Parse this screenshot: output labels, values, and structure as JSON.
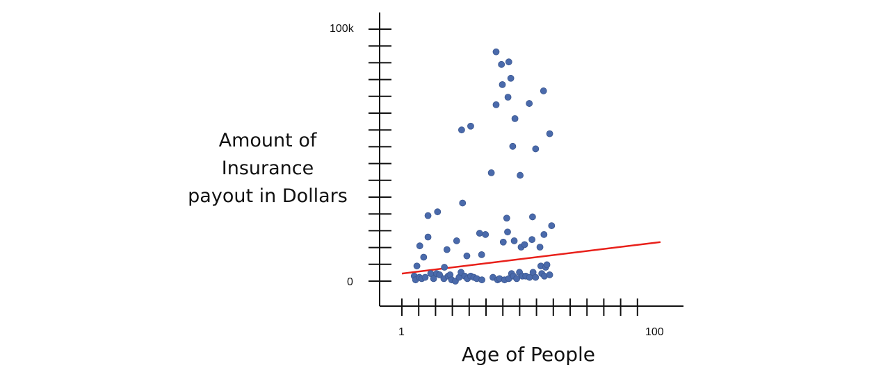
{
  "chart_data": {
    "type": "scatter",
    "ylabel_lines": [
      "Amount of",
      "Insurance",
      "payout in Dollars"
    ],
    "xlabel": "Age of People",
    "x_scale": "log",
    "xlim": [
      1,
      100
    ],
    "ylim": [
      0,
      100000
    ],
    "x_tick_labels": [
      "1",
      "100"
    ],
    "y_tick_labels": [
      "0",
      "100k"
    ],
    "colors": {
      "points": "#4a6aab",
      "trend": "#e8201a",
      "axis": "#111111"
    },
    "trend_line": {
      "x": [
        1,
        105
      ],
      "y": [
        3000,
        15500
      ]
    },
    "points": [
      {
        "x": 1.25,
        "y": 2000
      },
      {
        "x": 1.28,
        "y": 500
      },
      {
        "x": 1.31,
        "y": 6000
      },
      {
        "x": 1.38,
        "y": 14000
      },
      {
        "x": 1.37,
        "y": 1500
      },
      {
        "x": 1.43,
        "y": 1000
      },
      {
        "x": 1.48,
        "y": 9500
      },
      {
        "x": 1.52,
        "y": 1500
      },
      {
        "x": 1.6,
        "y": 26000
      },
      {
        "x": 1.6,
        "y": 17500
      },
      {
        "x": 1.68,
        "y": 3000
      },
      {
        "x": 1.77,
        "y": 1000
      },
      {
        "x": 1.87,
        "y": 3000
      },
      {
        "x": 1.9,
        "y": 27500
      },
      {
        "x": 1.97,
        "y": 2500
      },
      {
        "x": 2.15,
        "y": 5500
      },
      {
        "x": 2.13,
        "y": 1000
      },
      {
        "x": 2.25,
        "y": 12500
      },
      {
        "x": 2.3,
        "y": 2000
      },
      {
        "x": 2.38,
        "y": 2500
      },
      {
        "x": 2.45,
        "y": 500
      },
      {
        "x": 2.62,
        "y": 0
      },
      {
        "x": 2.68,
        "y": 16000
      },
      {
        "x": 2.8,
        "y": 1500
      },
      {
        "x": 2.9,
        "y": 3500
      },
      {
        "x": 2.93,
        "y": 60000
      },
      {
        "x": 2.98,
        "y": 31000
      },
      {
        "x": 3.1,
        "y": 2000
      },
      {
        "x": 3.22,
        "y": 10000
      },
      {
        "x": 3.25,
        "y": 1000
      },
      {
        "x": 3.45,
        "y": 61500
      },
      {
        "x": 3.45,
        "y": 2000
      },
      {
        "x": 3.65,
        "y": 1500
      },
      {
        "x": 3.85,
        "y": 1000
      },
      {
        "x": 4.05,
        "y": 19000
      },
      {
        "x": 4.2,
        "y": 10500
      },
      {
        "x": 4.22,
        "y": 500
      },
      {
        "x": 4.5,
        "y": 18500
      },
      {
        "x": 5.0,
        "y": 43000
      },
      {
        "x": 5.15,
        "y": 1500
      },
      {
        "x": 5.45,
        "y": 91000
      },
      {
        "x": 5.45,
        "y": 70000
      },
      {
        "x": 5.6,
        "y": 500
      },
      {
        "x": 5.8,
        "y": 1000
      },
      {
        "x": 6.0,
        "y": 86000
      },
      {
        "x": 6.1,
        "y": 78000
      },
      {
        "x": 6.2,
        "y": 15500
      },
      {
        "x": 6.35,
        "y": 500
      },
      {
        "x": 6.6,
        "y": 25000
      },
      {
        "x": 6.7,
        "y": 19500
      },
      {
        "x": 6.75,
        "y": 73000
      },
      {
        "x": 6.85,
        "y": 87000
      },
      {
        "x": 6.85,
        "y": 1000
      },
      {
        "x": 7.1,
        "y": 80500
      },
      {
        "x": 7.2,
        "y": 3000
      },
      {
        "x": 7.35,
        "y": 53500
      },
      {
        "x": 7.45,
        "y": 2000
      },
      {
        "x": 7.55,
        "y": 16000
      },
      {
        "x": 7.65,
        "y": 64500
      },
      {
        "x": 7.9,
        "y": 1000
      },
      {
        "x": 8.3,
        "y": 3500
      },
      {
        "x": 8.4,
        "y": 42000
      },
      {
        "x": 8.55,
        "y": 13500
      },
      {
        "x": 8.75,
        "y": 2000
      },
      {
        "x": 9.1,
        "y": 14500
      },
      {
        "x": 9.3,
        "y": 2000
      },
      {
        "x": 9.9,
        "y": 70500
      },
      {
        "x": 9.95,
        "y": 1500
      },
      {
        "x": 10.4,
        "y": 16500
      },
      {
        "x": 10.5,
        "y": 25500
      },
      {
        "x": 10.6,
        "y": 3500
      },
      {
        "x": 11.1,
        "y": 52500
      },
      {
        "x": 11.1,
        "y": 1500
      },
      {
        "x": 12.0,
        "y": 13500
      },
      {
        "x": 12.2,
        "y": 6000
      },
      {
        "x": 12.4,
        "y": 3000
      },
      {
        "x": 12.8,
        "y": 75500
      },
      {
        "x": 12.9,
        "y": 18500
      },
      {
        "x": 13.0,
        "y": 2000
      },
      {
        "x": 13.3,
        "y": 5500
      },
      {
        "x": 13.6,
        "y": 6500
      },
      {
        "x": 14.3,
        "y": 58500
      },
      {
        "x": 14.3,
        "y": 2500
      },
      {
        "x": 14.8,
        "y": 22000
      }
    ]
  }
}
